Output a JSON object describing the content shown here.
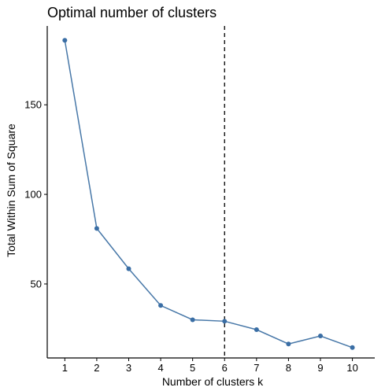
{
  "chart_data": {
    "type": "line",
    "title": "Optimal number of clusters",
    "xlabel": "Number of clusters k",
    "ylabel": "Total Within Sum of Square",
    "x": [
      1,
      2,
      3,
      4,
      5,
      6,
      7,
      8,
      9,
      10
    ],
    "series": [
      {
        "values": [
          186,
          81,
          58.5,
          38,
          30,
          29.2,
          24.5,
          16.5,
          21,
          14.5
        ]
      }
    ],
    "xticks": [
      "1",
      "2",
      "3",
      "4",
      "5",
      "6",
      "7",
      "8",
      "9",
      "10"
    ],
    "yticks": [
      50,
      100,
      150
    ],
    "xlim": [
      0.45,
      10.7
    ],
    "ylim": [
      8.7,
      194
    ],
    "vline": {
      "x": 6,
      "style": "dashed"
    },
    "grid": false,
    "colors": {
      "line": "#4878a8",
      "point": "#3a6ea5",
      "axis": "#000000",
      "vline": "#000000"
    }
  }
}
